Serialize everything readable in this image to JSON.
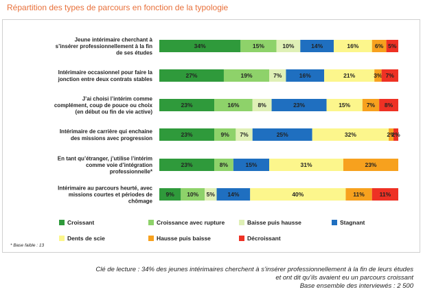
{
  "title": "Répartition des types de parcours en fonction de la typologie",
  "footnote": "* Base faible : 13",
  "reading_key": [
    "Clé de lecture : 34% des jeunes intérimaires cherchent à s’insérer professionnellement à la fin de leurs études",
    "et ont dit qu’ils avaient eu un parcours croissant",
    "Base ensemble des interviewés : 2 500"
  ],
  "chart_data": {
    "type": "bar",
    "orientation": "horizontal",
    "stacked": true,
    "percent": true,
    "legend_position": "bottom",
    "categories": [
      [
        "Jeune intérimaire cherchant à",
        "s’insérer professionnellement à la fin",
        "de ses études"
      ],
      [
        "Intérimaire occasionnel pour faire la",
        "jonction entre deux contrats stables"
      ],
      [
        "J’ai choisi l’intérim comme",
        "complément, coup de pouce ou choix",
        "(en début ou fin de vie active)"
      ],
      [
        "Intérimaire de carrière qui enchaine",
        "des missions avec progression"
      ],
      [
        "En tant qu’étranger, j’utilise l’intérim",
        "comme voie d’intégration",
        "professionnelle*"
      ],
      [
        "Intérimaire au parcours heurté, avec",
        "missions courtes et périodes de",
        "chômage"
      ]
    ],
    "series": [
      {
        "name": "Croissant",
        "color": "#2f9a3b",
        "values": [
          34,
          27,
          23,
          23,
          23,
          9
        ]
      },
      {
        "name": "Croissance avec rupture",
        "color": "#8ed26a",
        "values": [
          15,
          19,
          16,
          9,
          8,
          10
        ]
      },
      {
        "name": "Baisse puis hausse",
        "color": "#dff0b6",
        "values": [
          10,
          7,
          8,
          7,
          0,
          5
        ]
      },
      {
        "name": "Stagnant",
        "color": "#1f6fc0",
        "values": [
          14,
          16,
          23,
          25,
          15,
          14
        ]
      },
      {
        "name": "Dents de scie",
        "color": "#fcf68c",
        "values": [
          16,
          21,
          15,
          32,
          31,
          40
        ]
      },
      {
        "name": "Hausse puis baisse",
        "color": "#f7a11e",
        "values": [
          6,
          3,
          7,
          2,
          23,
          11
        ]
      },
      {
        "name": "Décroissant",
        "color": "#ee3124",
        "values": [
          5,
          7,
          8,
          2,
          0,
          11
        ]
      }
    ]
  }
}
